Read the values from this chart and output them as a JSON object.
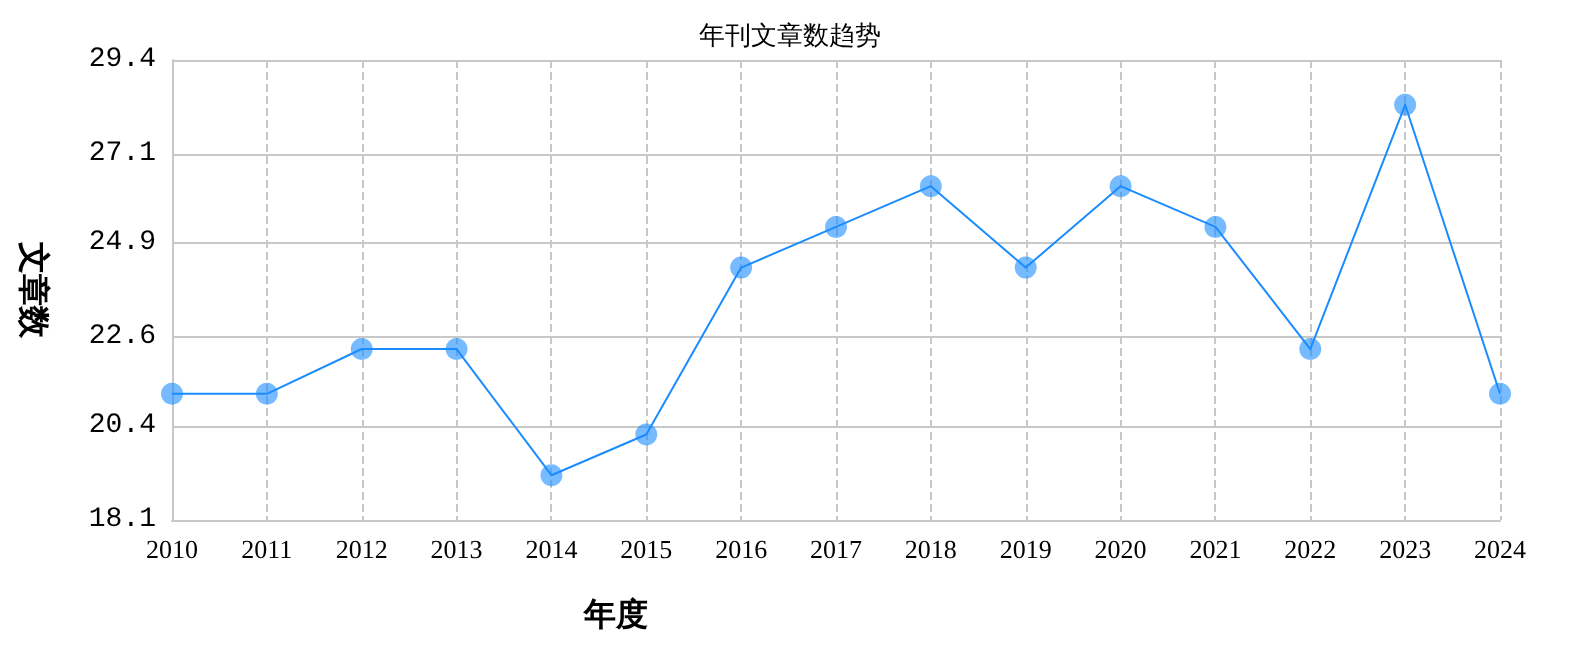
{
  "chart_data": {
    "type": "line",
    "title": "年刊文章数趋势",
    "xlabel": "年度",
    "ylabel": "文章数",
    "categories": [
      "2010",
      "2011",
      "2012",
      "2013",
      "2014",
      "2015",
      "2016",
      "2017",
      "2018",
      "2019",
      "2020",
      "2021",
      "2022",
      "2023",
      "2024"
    ],
    "series": [
      {
        "color": "#1a8cff",
        "values": [
          21.2,
          21.2,
          22.3,
          22.3,
          19.2,
          20.2,
          24.3,
          25.3,
          26.3,
          24.3,
          26.3,
          25.3,
          22.3,
          28.3,
          21.2
        ]
      }
    ],
    "ylim": [
      18.1,
      29.4
    ],
    "yticks": [
      18.1,
      20.4,
      22.6,
      24.9,
      27.1,
      29.4
    ],
    "grid": true,
    "marker": "circle",
    "line_style": "solid"
  }
}
